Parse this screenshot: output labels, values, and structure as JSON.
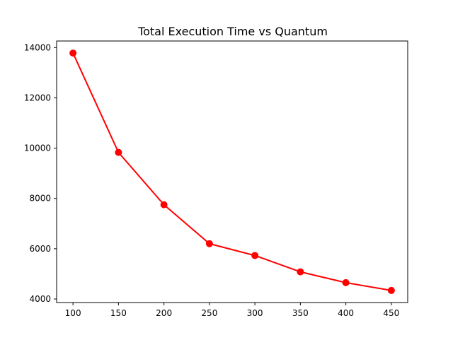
{
  "chart_data": {
    "type": "line",
    "title": "Total Execution Time vs Quantum",
    "xlabel": "",
    "ylabel": "",
    "x": [
      100,
      150,
      200,
      250,
      300,
      350,
      400,
      450
    ],
    "series": [
      {
        "values": [
          13780,
          9830,
          7750,
          6200,
          5730,
          5080,
          4650,
          4340
        ],
        "color": "#ff0000",
        "marker": "circle"
      }
    ],
    "xlim": [
      82,
      468
    ],
    "ylim": [
      3860,
      14260
    ],
    "xticks": [
      100,
      150,
      200,
      250,
      300,
      350,
      400,
      450
    ],
    "yticks": [
      4000,
      6000,
      8000,
      10000,
      12000,
      14000
    ],
    "grid": false,
    "legend": "none"
  }
}
